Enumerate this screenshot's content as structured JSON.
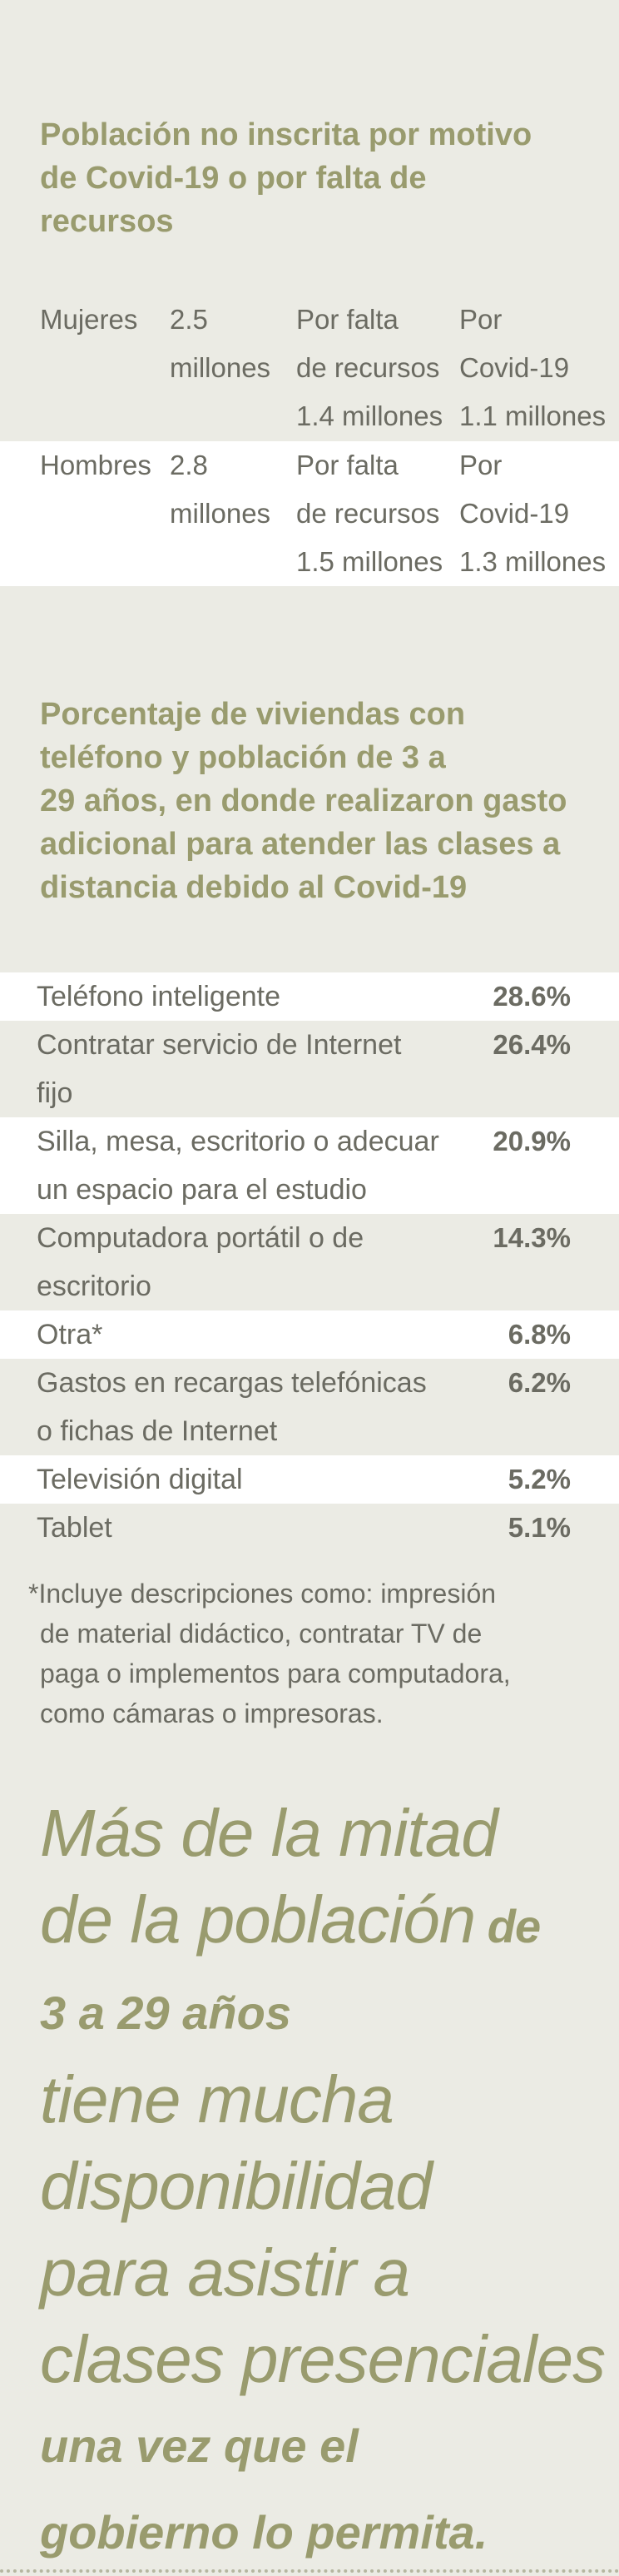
{
  "section1": {
    "title_lines": [
      "Población no inscrita por motivo",
      "de Covid-19 o por falta de",
      "recursos"
    ],
    "rows": [
      {
        "group": "Mujeres",
        "total_lines": [
          "2.5",
          "millones"
        ],
        "resources_lines": [
          "Por falta",
          "de recursos",
          "1.4 millones"
        ],
        "covid_lines": [
          "Por",
          "Covid-19",
          "1.1 millones"
        ]
      },
      {
        "group": "Hombres",
        "total_lines": [
          "2.8",
          "millones"
        ],
        "resources_lines": [
          "Por falta",
          "de recursos",
          "1.5 millones"
        ],
        "covid_lines": [
          "Por",
          "Covid-19",
          "1.3 millones"
        ]
      }
    ]
  },
  "section2": {
    "title_lines": [
      "Porcentaje de viviendas con",
      "teléfono y población de 3 a",
      "29 años, en donde realizaron gasto",
      "adicional para atender las clases a",
      "distancia debido al Covid-19"
    ],
    "items": [
      {
        "label_lines": [
          "Teléfono inteligente"
        ],
        "value": "28.6%"
      },
      {
        "label_lines": [
          "Contratar servicio de Internet",
          "fijo"
        ],
        "value": "26.4%"
      },
      {
        "label_lines": [
          "Silla, mesa, escritorio o adecuar",
          "un espacio para el estudio"
        ],
        "value": "20.9%"
      },
      {
        "label_lines": [
          "Computadora portátil o de",
          "escritorio"
        ],
        "value": "14.3%"
      },
      {
        "label_lines": [
          "Otra*"
        ],
        "value": "6.8%"
      },
      {
        "label_lines": [
          "Gastos en recargas telefónicas",
          "o fichas de Internet"
        ],
        "value": "6.2%"
      },
      {
        "label_lines": [
          "Televisión digital"
        ],
        "value": "5.2%"
      },
      {
        "label_lines": [
          "Tablet"
        ],
        "value": "5.1%"
      }
    ],
    "footnote_lines": [
      "*Incluye descripciones como: impresión",
      "de material didáctico, contratar TV de",
      "paga o implementos para computadora,",
      "como cámaras o impresoras."
    ]
  },
  "quote": {
    "line1": "Más de la mitad",
    "line2_light": "de la población",
    "line2_bold": " de",
    "line3_bold": "3 a 29 años",
    "line4": "tiene mucha",
    "line5": "disponibilidad",
    "line6": "para asistir a",
    "line7": "clases presenciales",
    "line8_bold": "una vez que el",
    "line9_bold": "gobierno lo permita."
  }
}
